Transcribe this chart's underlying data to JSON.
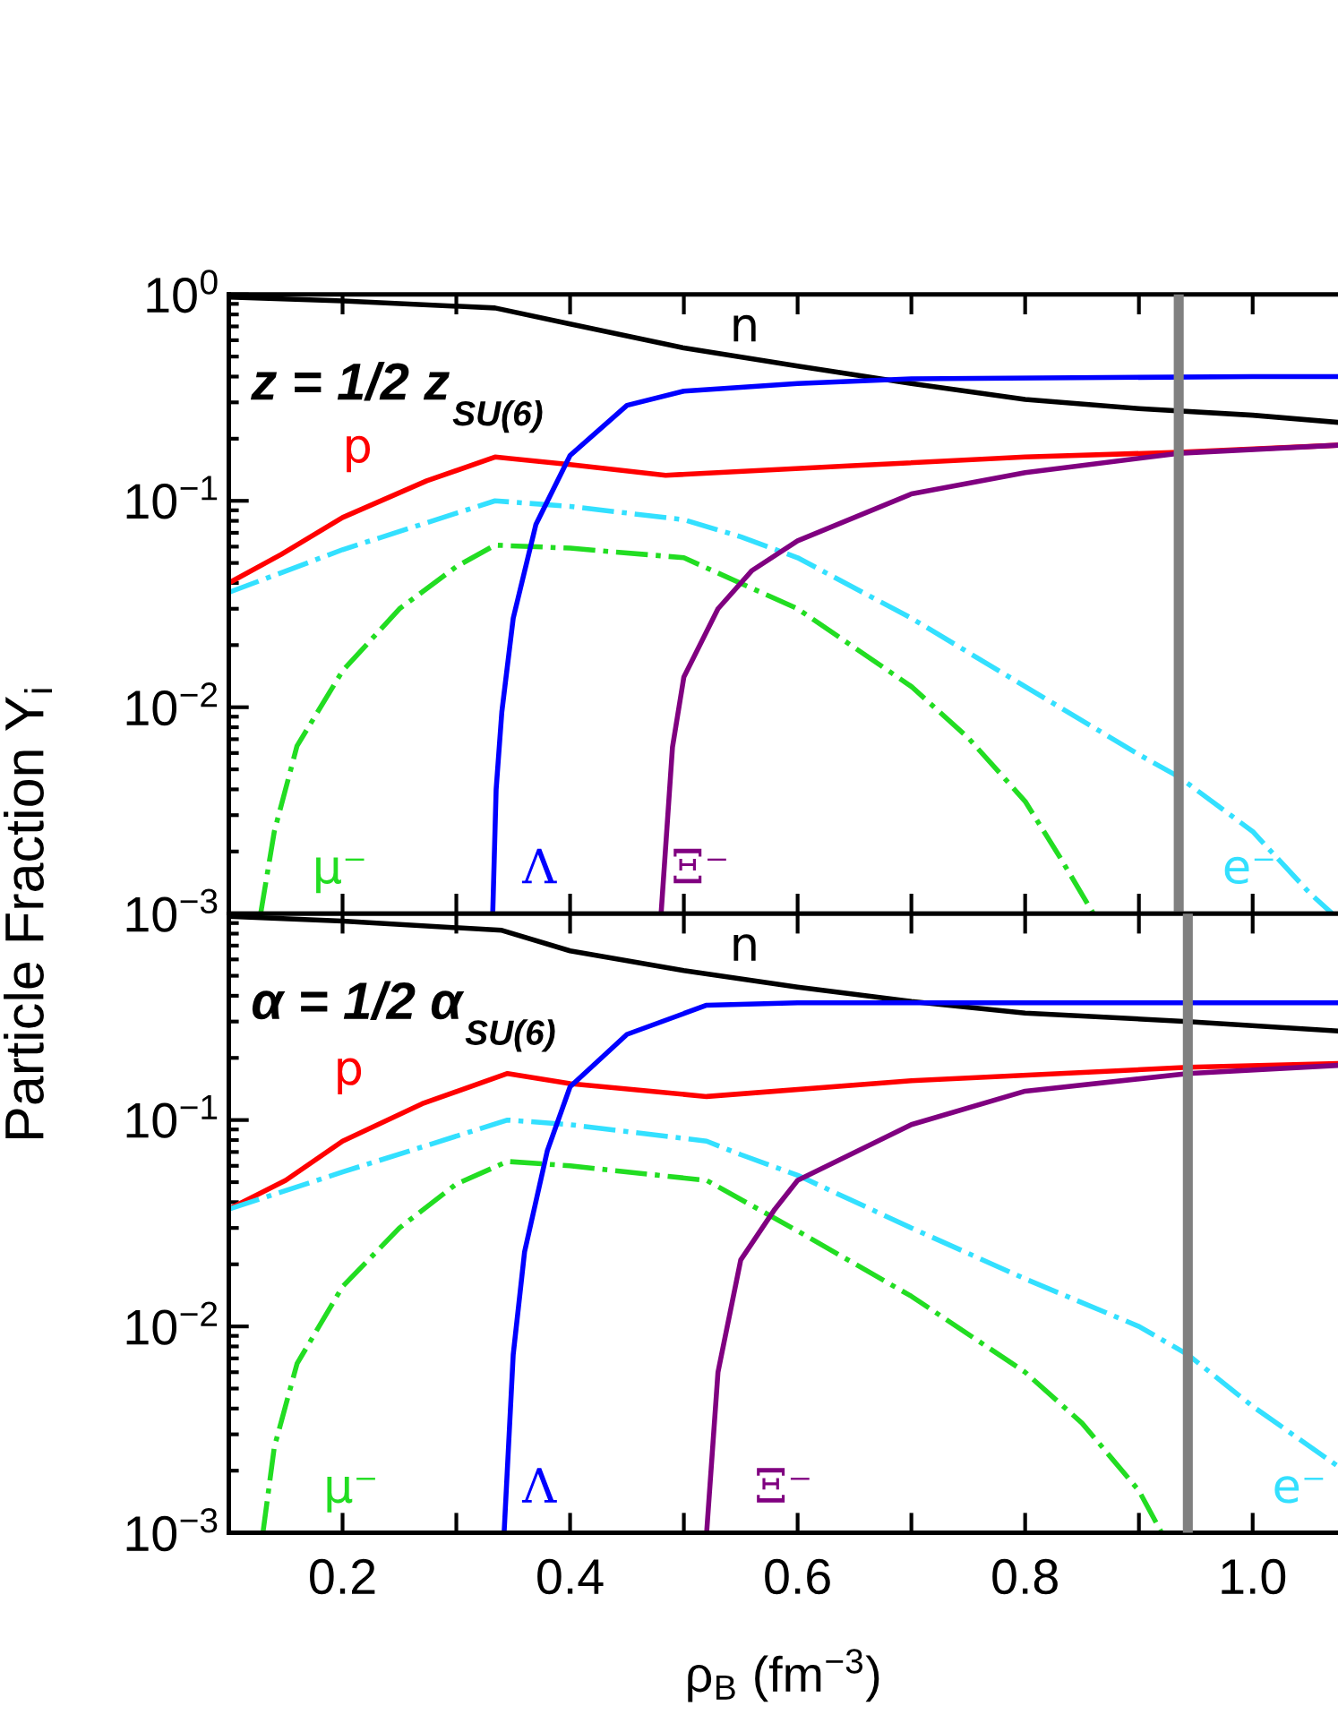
{
  "chart_data": [
    {
      "type": "line",
      "log": "y",
      "ylabel": "Particle Fraction Y$_{i}$",
      "xlim": [
        0.1,
        1.075
      ],
      "ylim": [
        0.001,
        1
      ],
      "yticks": [
        {
          "value": 1,
          "label": "10$^{0}$"
        },
        {
          "value": 0.1,
          "label": "10$^{−1}$"
        },
        {
          "value": 0.01,
          "label": "10$^{−2}$"
        },
        {
          "value": 0.001,
          "label": "10$^{−3}$"
        }
      ],
      "xticks": [
        {
          "value": 0.2,
          "label": null
        },
        {
          "value": 0.3,
          "label": null
        },
        {
          "value": 0.4,
          "label": null
        },
        {
          "value": 0.5,
          "label": null
        },
        {
          "value": 0.6,
          "label": null
        },
        {
          "value": 0.7,
          "label": null
        },
        {
          "value": 0.8,
          "label": null
        },
        {
          "value": 0.9,
          "label": null
        },
        {
          "value": 1.0,
          "label": null
        }
      ],
      "tick_labels": "y",
      "grid": false,
      "series": [
        {
          "name": "n",
          "color": "#000000",
          "x": [
            0.1,
            0.2,
            0.334,
            0.4,
            0.5,
            0.6,
            0.7,
            0.8,
            0.9,
            1.0,
            1.075
          ],
          "values": [
            0.97,
            0.93,
            0.86,
            0.72,
            0.55,
            0.45,
            0.37,
            0.31,
            0.28,
            0.26,
            0.24
          ]
        },
        {
          "name": "p",
          "color": "#ff0000",
          "x": [
            0.1,
            0.146,
            0.2,
            0.274,
            0.334,
            0.4,
            0.484,
            0.648,
            0.8,
            0.935,
            1.075
          ],
          "values": [
            0.04,
            0.055,
            0.083,
            0.125,
            0.163,
            0.15,
            0.133,
            0.148,
            0.163,
            0.172,
            0.186
          ]
        },
        {
          "name": "e⁻",
          "color": "#33e0ff",
          "line_style": "dashdot",
          "x": [
            0.1,
            0.2,
            0.334,
            0.4,
            0.5,
            0.55,
            0.6,
            0.7,
            0.8,
            0.9,
            0.935,
            1.0,
            1.05,
            1.07
          ],
          "values": [
            0.036,
            0.058,
            0.1,
            0.094,
            0.081,
            0.067,
            0.053,
            0.027,
            0.0126,
            0.0059,
            0.0046,
            0.0025,
            0.00126,
            0.001
          ]
        },
        {
          "name": "μ⁻",
          "color": "#22dd22",
          "line_style": "dashdot",
          "x": [
            0.128,
            0.14,
            0.16,
            0.2,
            0.25,
            0.3,
            0.334,
            0.4,
            0.5,
            0.6,
            0.7,
            0.75,
            0.8,
            0.83,
            0.86
          ],
          "values": [
            0.001,
            0.0025,
            0.0065,
            0.015,
            0.03,
            0.048,
            0.061,
            0.059,
            0.053,
            0.03,
            0.0126,
            0.0071,
            0.0035,
            0.0019,
            0.001
          ]
        },
        {
          "name": "Λ",
          "color": "#0000ff",
          "x": [
            0.332,
            0.335,
            0.34,
            0.35,
            0.37,
            0.4,
            0.45,
            0.5,
            0.6,
            0.7,
            1.0,
            1.075
          ],
          "values": [
            0.001,
            0.004,
            0.0095,
            0.027,
            0.077,
            0.166,
            0.29,
            0.34,
            0.37,
            0.39,
            0.4,
            0.4
          ]
        },
        {
          "name": "Ξ⁻",
          "color": "#800080",
          "x": [
            0.48,
            0.49,
            0.5,
            0.53,
            0.56,
            0.6,
            0.7,
            0.8,
            0.935,
            1.075
          ],
          "values": [
            0.001,
            0.0064,
            0.014,
            0.03,
            0.046,
            0.064,
            0.108,
            0.137,
            0.17,
            0.186
          ]
        }
      ],
      "ref_lines": [
        {
          "axis": "x",
          "value": 0.935,
          "color": "#808080"
        }
      ],
      "annotations": [
        "z = 1/2 z$_{SU(6)}$"
      ]
    },
    {
      "type": "line",
      "log": "y",
      "xlabel": "ρ$_{B}$ (fm$^{−3}$)",
      "xlim": [
        0.1,
        1.075
      ],
      "ylim": [
        0.001,
        1
      ],
      "yticks": [
        {
          "value": 1,
          "label": null
        },
        {
          "value": 0.1,
          "label": "10$^{−1}$"
        },
        {
          "value": 0.01,
          "label": "10$^{−2}$"
        },
        {
          "value": 0.001,
          "label": "10$^{−3}$"
        }
      ],
      "xticks": [
        0.2,
        {
          "value": 0.3,
          "label": null
        },
        0.4,
        {
          "value": 0.5,
          "label": null
        },
        0.6,
        {
          "value": 0.7,
          "label": null
        },
        0.8,
        {
          "value": 0.9,
          "label": null
        },
        {
          "value": 1.0,
          "label": "1.0"
        }
      ],
      "grid": false,
      "series": [
        {
          "name": "n",
          "color": "#000000",
          "x": [
            0.1,
            0.2,
            0.34,
            0.4,
            0.5,
            0.6,
            0.7,
            0.8,
            0.943,
            1.075
          ],
          "values": [
            0.97,
            0.92,
            0.83,
            0.66,
            0.53,
            0.44,
            0.375,
            0.33,
            0.3,
            0.27
          ]
        },
        {
          "name": "p",
          "color": "#ff0000",
          "x": [
            0.1,
            0.15,
            0.2,
            0.27,
            0.345,
            0.4,
            0.52,
            0.7,
            0.943,
            1.075
          ],
          "values": [
            0.037,
            0.051,
            0.079,
            0.12,
            0.168,
            0.15,
            0.13,
            0.155,
            0.18,
            0.188
          ]
        },
        {
          "name": "e⁻",
          "color": "#33e0ff",
          "line_style": "dashdot",
          "x": [
            0.1,
            0.2,
            0.345,
            0.4,
            0.52,
            0.55,
            0.6,
            0.7,
            0.8,
            0.9,
            0.943,
            1.0,
            1.075
          ],
          "values": [
            0.037,
            0.056,
            0.1,
            0.095,
            0.079,
            0.068,
            0.054,
            0.03,
            0.017,
            0.01,
            0.0073,
            0.0041,
            0.0021
          ]
        },
        {
          "name": "μ⁻",
          "color": "#22dd22",
          "line_style": "dashdot",
          "x": [
            0.13,
            0.14,
            0.16,
            0.2,
            0.25,
            0.3,
            0.345,
            0.4,
            0.52,
            0.6,
            0.7,
            0.8,
            0.85,
            0.9,
            0.92
          ],
          "values": [
            0.001,
            0.0026,
            0.0066,
            0.0156,
            0.03,
            0.049,
            0.063,
            0.06,
            0.051,
            0.029,
            0.014,
            0.006,
            0.0034,
            0.0016,
            0.001
          ]
        },
        {
          "name": "Λ",
          "color": "#0000ff",
          "x": [
            0.342,
            0.35,
            0.36,
            0.38,
            0.4,
            0.45,
            0.52,
            0.6,
            1.075
          ],
          "values": [
            0.001,
            0.0073,
            0.023,
            0.071,
            0.145,
            0.26,
            0.36,
            0.37,
            0.37
          ]
        },
        {
          "name": "Ξ⁻",
          "color": "#800080",
          "x": [
            0.52,
            0.53,
            0.55,
            0.58,
            0.6,
            0.7,
            0.8,
            0.943,
            1.075
          ],
          "values": [
            0.001,
            0.006,
            0.021,
            0.037,
            0.051,
            0.095,
            0.138,
            0.168,
            0.184
          ]
        }
      ],
      "ref_lines": [
        {
          "axis": "x",
          "value": 0.943,
          "color": "#808080"
        }
      ],
      "annotations": [
        "α = 1/2 α$_{SU(6)}$"
      ]
    }
  ]
}
